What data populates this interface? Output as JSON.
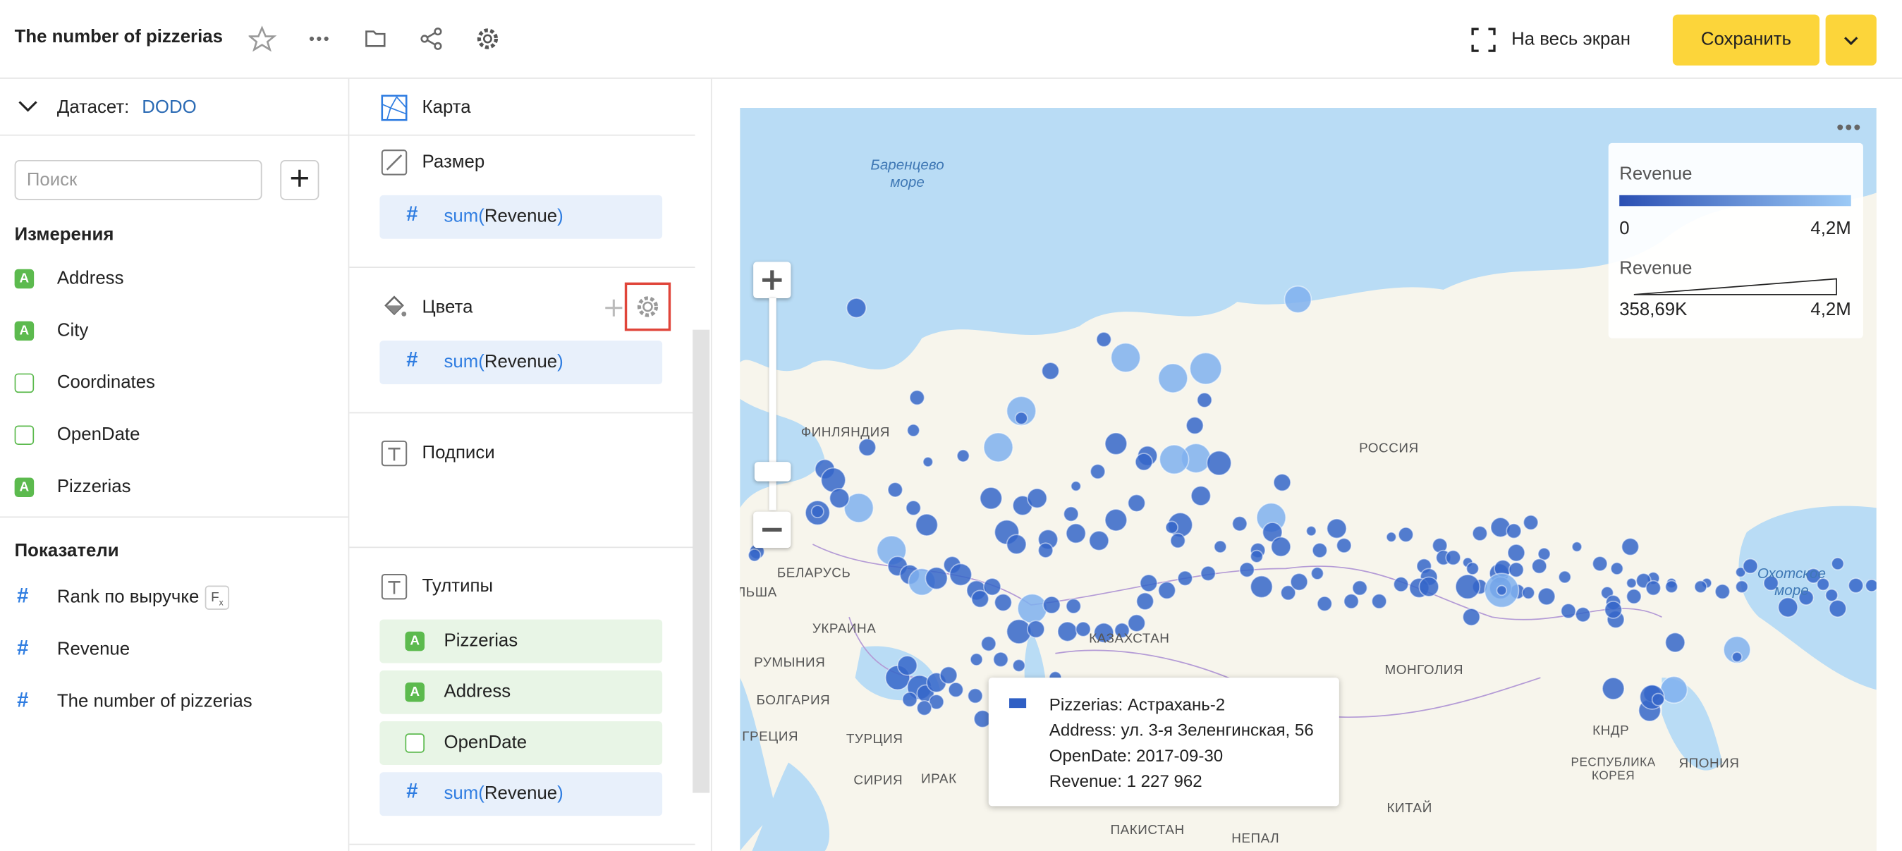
{
  "header": {
    "title": "The number of pizzerias",
    "fullscreen": "На весь экран",
    "save": "Сохранить"
  },
  "dataset": {
    "label": "Датасет:",
    "name": "DODO",
    "search_placeholder": "Поиск"
  },
  "dimensions": {
    "title": "Измерения",
    "items": [
      "Address",
      "City",
      "Coordinates",
      "OpenDate",
      "Pizzerias"
    ]
  },
  "measures": {
    "title": "Показатели",
    "items": [
      "Rank по выручке",
      "Revenue",
      "The number of pizzerias"
    ]
  },
  "sections": {
    "chart": "Карта",
    "size": "Размер",
    "colors": "Цвета",
    "labels": "Подписи",
    "tooltips": "Тултипы"
  },
  "field": {
    "func": "sum(",
    "name": "Revenue",
    "close": ")"
  },
  "tooltip_fields": [
    "Pizzerias",
    "Address",
    "OpenDate"
  ],
  "map": {
    "labels": [
      "Баренцево море",
      "ФИНЛЯНДИЯ",
      "РОССИЯ",
      "БЕЛАРУСЬ",
      "ЛЬША",
      "УКРАИНА",
      "КАЗАХСТАН",
      "РУМЫНИЯ",
      "МОНГОЛИЯ",
      "БОЛГАРИЯ",
      "ГРЕЦИЯ",
      "ТУРЦИЯ",
      "СИРИЯ",
      "ИРАК",
      "КИТАЙ",
      "ПАКИСТАН",
      "НЕПАЛ",
      "Охотское море",
      "КНДР",
      "РЕСПУБЛИКА КОРЕЯ",
      "ЯПОНИЯ"
    ]
  },
  "legend": {
    "color_title": "Revenue",
    "color_min": "0",
    "color_max": "4,2M",
    "size_title": "Revenue",
    "size_min": "358,69K",
    "size_max": "4,2M"
  },
  "tooltip": [
    "Pizzerias: Астрахань-2",
    "Address: ул. 3-я Зеленгинская, 56",
    "OpenDate: 2017-09-30",
    "Revenue: 1 227 962"
  ]
}
